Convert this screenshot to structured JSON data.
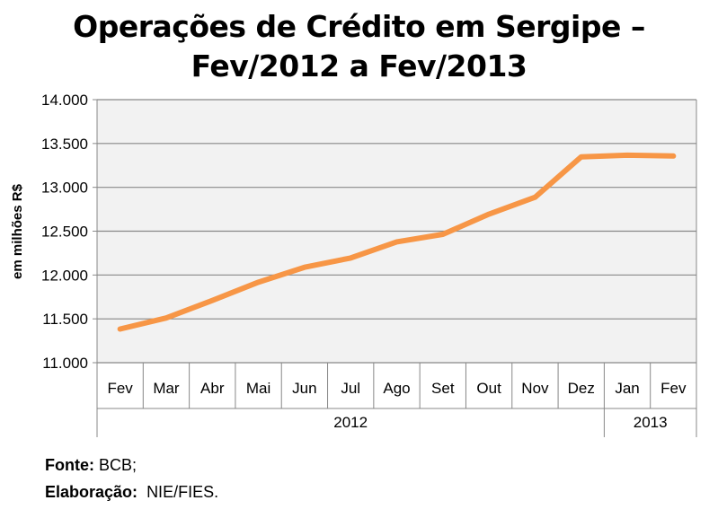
{
  "chart_data": {
    "type": "line",
    "title_line1": "Operações de Crédito em Sergipe –",
    "title_line2": "Fev/2012 a Fev/2013",
    "ylabel": "em milhões R$",
    "ylim": [
      11000,
      14000
    ],
    "yticks": [
      11000,
      11500,
      12000,
      12500,
      13000,
      13500,
      14000
    ],
    "ytick_labels": [
      "11.000",
      "11.500",
      "12.000",
      "12.500",
      "13.000",
      "13.500",
      "14.000"
    ],
    "categories": [
      "Fev",
      "Mar",
      "Abr",
      "Mai",
      "Jun",
      "Jul",
      "Ago",
      "Set",
      "Out",
      "Nov",
      "Dez",
      "Jan",
      "Fev"
    ],
    "year_groups": [
      {
        "label": "2012",
        "count": 11
      },
      {
        "label": "2013",
        "count": 2
      }
    ],
    "series": [
      {
        "name": "Operações de Crédito",
        "color": "#f79646",
        "values": [
          11384,
          11510,
          11710,
          11918,
          12088,
          12194,
          12378,
          12464,
          12694,
          12887,
          13347,
          13367,
          13357
        ]
      }
    ],
    "grid": true
  },
  "footer": {
    "source_label": "Fonte:",
    "source_value": "BCB;",
    "elab_label": "Elaboração:",
    "elab_value": "NIE/FIES."
  }
}
